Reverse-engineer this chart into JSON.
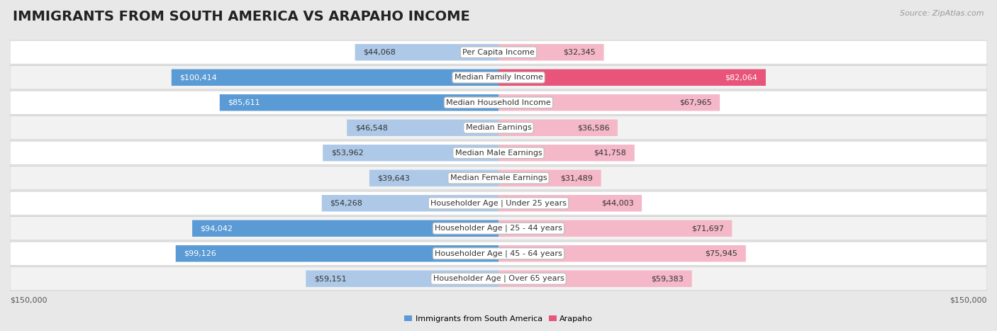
{
  "title": "IMMIGRANTS FROM SOUTH AMERICA VS ARAPAHO INCOME",
  "source": "Source: ZipAtlas.com",
  "categories": [
    "Per Capita Income",
    "Median Family Income",
    "Median Household Income",
    "Median Earnings",
    "Median Male Earnings",
    "Median Female Earnings",
    "Householder Age | Under 25 years",
    "Householder Age | 25 - 44 years",
    "Householder Age | 45 - 64 years",
    "Householder Age | Over 65 years"
  ],
  "left_values": [
    44068,
    100414,
    85611,
    46548,
    53962,
    39643,
    54268,
    94042,
    99126,
    59151
  ],
  "right_values": [
    32345,
    82064,
    67965,
    36586,
    41758,
    31489,
    44003,
    71697,
    75945,
    59383
  ],
  "left_labels": [
    "$44,068",
    "$100,414",
    "$85,611",
    "$46,548",
    "$53,962",
    "$39,643",
    "$54,268",
    "$94,042",
    "$99,126",
    "$59,151"
  ],
  "right_labels": [
    "$32,345",
    "$82,064",
    "$67,965",
    "$36,586",
    "$41,758",
    "$31,489",
    "$44,003",
    "$71,697",
    "$75,945",
    "$59,383"
  ],
  "max_value": 150000,
  "left_color_light": "#aec9e8",
  "left_color_strong": "#5b9bd5",
  "right_color_light": "#f4b8c8",
  "right_color_strong": "#e8547a",
  "background_color": "#e8e8e8",
  "row_background_odd": "#f2f2f2",
  "row_background_even": "#ffffff",
  "legend_left": "Immigrants from South America",
  "legend_right": "Arapaho",
  "xlabel_left": "$150,000",
  "xlabel_right": "$150,000",
  "title_fontsize": 14,
  "source_fontsize": 8,
  "label_fontsize": 8,
  "category_fontsize": 8,
  "inside_label_threshold": 30000,
  "strong_bar_threshold": 80000
}
